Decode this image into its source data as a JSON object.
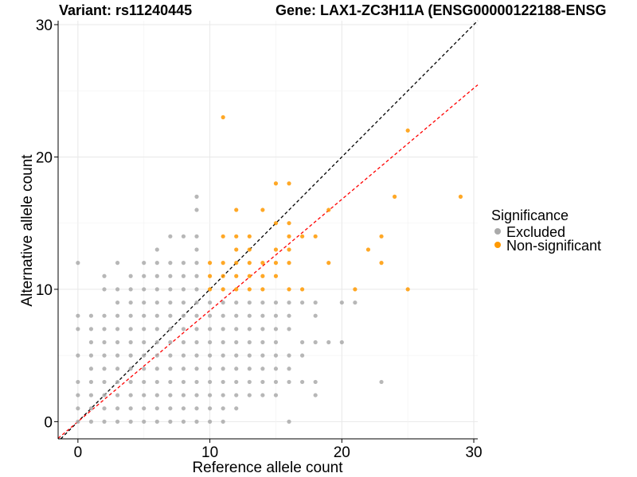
{
  "chart_data": {
    "type": "scatter",
    "title_left": "Variant: rs11240445",
    "title_right": "Gene: LAX1-ZC3H11A (ENSG00000122188-ENSG",
    "xlabel": "Reference allele count",
    "ylabel": "Alternative allele count",
    "xlim": [
      -1.5,
      30.3
    ],
    "ylim": [
      -1.3,
      30.3
    ],
    "xticks": [
      0,
      10,
      20,
      30
    ],
    "yticks": [
      0,
      10,
      20,
      30
    ],
    "grid": true,
    "legend": {
      "title": "Significance",
      "position": "right",
      "entries": [
        {
          "label": "Excluded",
          "color": "#aaaaaa"
        },
        {
          "label": "Non-significant",
          "color": "#ff9900"
        }
      ]
    },
    "reference_lines": [
      {
        "name": "identity",
        "slope": 1,
        "intercept": 0,
        "color": "#000000",
        "dash": "dashed"
      },
      {
        "name": "fit",
        "slope": 0.84,
        "intercept": 0,
        "color": "#ff0000",
        "dash": "dashed"
      }
    ],
    "series": [
      {
        "color": "#aaaaaa",
        "points": [
          [
            0,
            0
          ],
          [
            0,
            1
          ],
          [
            0,
            2
          ],
          [
            0,
            3
          ],
          [
            0,
            5
          ],
          [
            0,
            7
          ],
          [
            0,
            8
          ],
          [
            0,
            12
          ],
          [
            1,
            0
          ],
          [
            1,
            1
          ],
          [
            1,
            2
          ],
          [
            1,
            3
          ],
          [
            1,
            4
          ],
          [
            1,
            5
          ],
          [
            1,
            6
          ],
          [
            1,
            7
          ],
          [
            1,
            8
          ],
          [
            2,
            0
          ],
          [
            2,
            1
          ],
          [
            2,
            2
          ],
          [
            2,
            3
          ],
          [
            2,
            4
          ],
          [
            2,
            5
          ],
          [
            2,
            6
          ],
          [
            2,
            7
          ],
          [
            2,
            8
          ],
          [
            2,
            10
          ],
          [
            2,
            11
          ],
          [
            3,
            0
          ],
          [
            3,
            1
          ],
          [
            3,
            2
          ],
          [
            3,
            3
          ],
          [
            3,
            4
          ],
          [
            3,
            5
          ],
          [
            3,
            6
          ],
          [
            3,
            7
          ],
          [
            3,
            8
          ],
          [
            3,
            9
          ],
          [
            3,
            10
          ],
          [
            3,
            12
          ],
          [
            4,
            0
          ],
          [
            4,
            1
          ],
          [
            4,
            2
          ],
          [
            4,
            3
          ],
          [
            4,
            4
          ],
          [
            4,
            5
          ],
          [
            4,
            6
          ],
          [
            4,
            7
          ],
          [
            4,
            8
          ],
          [
            4,
            9
          ],
          [
            4,
            10
          ],
          [
            4,
            11
          ],
          [
            5,
            0
          ],
          [
            5,
            1
          ],
          [
            5,
            2
          ],
          [
            5,
            3
          ],
          [
            5,
            4
          ],
          [
            5,
            5
          ],
          [
            5,
            6
          ],
          [
            5,
            7
          ],
          [
            5,
            8
          ],
          [
            5,
            9
          ],
          [
            5,
            10
          ],
          [
            5,
            11
          ],
          [
            5,
            12
          ],
          [
            6,
            0
          ],
          [
            6,
            1
          ],
          [
            6,
            2
          ],
          [
            6,
            3
          ],
          [
            6,
            4
          ],
          [
            6,
            5
          ],
          [
            6,
            6
          ],
          [
            6,
            7
          ],
          [
            6,
            8
          ],
          [
            6,
            9
          ],
          [
            6,
            10
          ],
          [
            6,
            11
          ],
          [
            6,
            12
          ],
          [
            6,
            13
          ],
          [
            7,
            0
          ],
          [
            7,
            1
          ],
          [
            7,
            2
          ],
          [
            7,
            3
          ],
          [
            7,
            4
          ],
          [
            7,
            5
          ],
          [
            7,
            6
          ],
          [
            7,
            7
          ],
          [
            7,
            8
          ],
          [
            7,
            9
          ],
          [
            7,
            10
          ],
          [
            7,
            11
          ],
          [
            7,
            12
          ],
          [
            7,
            14
          ],
          [
            8,
            0
          ],
          [
            8,
            1
          ],
          [
            8,
            2
          ],
          [
            8,
            3
          ],
          [
            8,
            4
          ],
          [
            8,
            5
          ],
          [
            8,
            6
          ],
          [
            8,
            7
          ],
          [
            8,
            8
          ],
          [
            8,
            9
          ],
          [
            8,
            10
          ],
          [
            8,
            11
          ],
          [
            8,
            12
          ],
          [
            8,
            14
          ],
          [
            9,
            0
          ],
          [
            9,
            1
          ],
          [
            9,
            2
          ],
          [
            9,
            3
          ],
          [
            9,
            4
          ],
          [
            9,
            5
          ],
          [
            9,
            6
          ],
          [
            9,
            7
          ],
          [
            9,
            8
          ],
          [
            9,
            9
          ],
          [
            9,
            10
          ],
          [
            9,
            11
          ],
          [
            9,
            12
          ],
          [
            9,
            13
          ],
          [
            9,
            14
          ],
          [
            9,
            16
          ],
          [
            9,
            17
          ],
          [
            10,
            0
          ],
          [
            10,
            1
          ],
          [
            10,
            2
          ],
          [
            10,
            3
          ],
          [
            10,
            4
          ],
          [
            10,
            5
          ],
          [
            10,
            6
          ],
          [
            10,
            7
          ],
          [
            10,
            8
          ],
          [
            10,
            9
          ],
          [
            11,
            0
          ],
          [
            11,
            1
          ],
          [
            11,
            2
          ],
          [
            11,
            3
          ],
          [
            11,
            4
          ],
          [
            11,
            5
          ],
          [
            11,
            6
          ],
          [
            11,
            7
          ],
          [
            11,
            8
          ],
          [
            11,
            9
          ],
          [
            12,
            1
          ],
          [
            12,
            2
          ],
          [
            12,
            3
          ],
          [
            12,
            4
          ],
          [
            12,
            5
          ],
          [
            12,
            6
          ],
          [
            12,
            7
          ],
          [
            12,
            8
          ],
          [
            12,
            9
          ],
          [
            13,
            2
          ],
          [
            13,
            3
          ],
          [
            13,
            4
          ],
          [
            13,
            5
          ],
          [
            13,
            6
          ],
          [
            13,
            7
          ],
          [
            13,
            8
          ],
          [
            13,
            9
          ],
          [
            14,
            2
          ],
          [
            14,
            3
          ],
          [
            14,
            4
          ],
          [
            14,
            5
          ],
          [
            14,
            6
          ],
          [
            14,
            7
          ],
          [
            14,
            8
          ],
          [
            14,
            9
          ],
          [
            15,
            2
          ],
          [
            15,
            3
          ],
          [
            15,
            4
          ],
          [
            15,
            5
          ],
          [
            15,
            6
          ],
          [
            15,
            7
          ],
          [
            15,
            8
          ],
          [
            15,
            9
          ],
          [
            16,
            0
          ],
          [
            16,
            3
          ],
          [
            16,
            4
          ],
          [
            16,
            5
          ],
          [
            16,
            7
          ],
          [
            16,
            8
          ],
          [
            16,
            9
          ],
          [
            17,
            3
          ],
          [
            17,
            5
          ],
          [
            17,
            6
          ],
          [
            17,
            9
          ],
          [
            18,
            2
          ],
          [
            18,
            3
          ],
          [
            18,
            6
          ],
          [
            18,
            8
          ],
          [
            18,
            9
          ],
          [
            19,
            6
          ],
          [
            20,
            6
          ],
          [
            20,
            9
          ],
          [
            21,
            9
          ],
          [
            23,
            3
          ]
        ]
      },
      {
        "color": "#ff9900",
        "points": [
          [
            10,
            10
          ],
          [
            10,
            11
          ],
          [
            10,
            12
          ],
          [
            11,
            10
          ],
          [
            11,
            11
          ],
          [
            11,
            12
          ],
          [
            11,
            14
          ],
          [
            11,
            23
          ],
          [
            12,
            10
          ],
          [
            12,
            11
          ],
          [
            12,
            12
          ],
          [
            12,
            13
          ],
          [
            12,
            14
          ],
          [
            12,
            16
          ],
          [
            13,
            10
          ],
          [
            13,
            11
          ],
          [
            13,
            12
          ],
          [
            13,
            13
          ],
          [
            13,
            14
          ],
          [
            14,
            10
          ],
          [
            14,
            11
          ],
          [
            14,
            12
          ],
          [
            14,
            16
          ],
          [
            15,
            11
          ],
          [
            15,
            12
          ],
          [
            15,
            13
          ],
          [
            15,
            15
          ],
          [
            15,
            18
          ],
          [
            16,
            10
          ],
          [
            16,
            12
          ],
          [
            16,
            13
          ],
          [
            16,
            14
          ],
          [
            16,
            15
          ],
          [
            16,
            18
          ],
          [
            17,
            10
          ],
          [
            17,
            14
          ],
          [
            18,
            14
          ],
          [
            19,
            12
          ],
          [
            19,
            16
          ],
          [
            21,
            10
          ],
          [
            22,
            13
          ],
          [
            23,
            12
          ],
          [
            23,
            14
          ],
          [
            24,
            17
          ],
          [
            25,
            10
          ],
          [
            25,
            22
          ],
          [
            29,
            17
          ]
        ]
      }
    ]
  }
}
